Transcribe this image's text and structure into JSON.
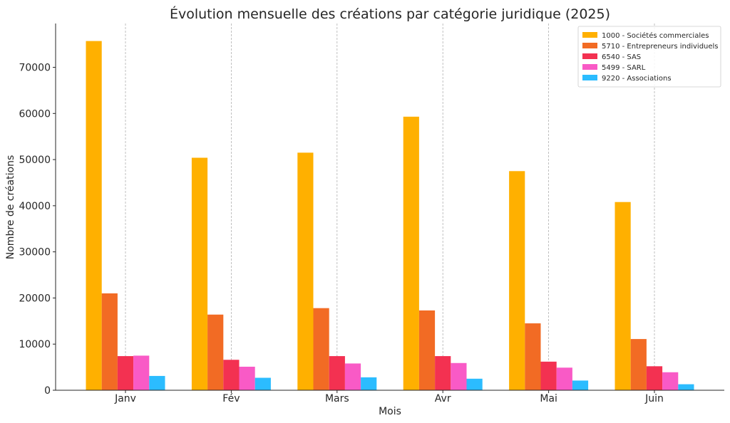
{
  "chart_data": {
    "type": "bar",
    "title": "Évolution mensuelle des créations par catégorie juridique (2025)",
    "xlabel": "Mois",
    "ylabel": "Nombre de créations",
    "categories": [
      "Janv",
      "Fév",
      "Mars",
      "Avr",
      "Mai",
      "Juin"
    ],
    "ylim": [
      0,
      79500
    ],
    "yticks": [
      0,
      10000,
      20000,
      30000,
      40000,
      50000,
      60000,
      70000
    ],
    "grid": "vertical-dashed",
    "legend_position": "top-right",
    "series": [
      {
        "name": "1000 - Sociétés commerciales",
        "color": "#ffb000",
        "values": [
          75700,
          50400,
          51500,
          59300,
          47500,
          40800
        ]
      },
      {
        "name": "5710 - Entrepreneurs individuels",
        "color": "#f26b24",
        "values": [
          21000,
          16400,
          17800,
          17300,
          14500,
          11100
        ]
      },
      {
        "name": "6540 - SAS",
        "color": "#f33151",
        "values": [
          7400,
          6600,
          7400,
          7400,
          6200,
          5200
        ]
      },
      {
        "name": "5499 - SARL",
        "color": "#f95ac6",
        "values": [
          7500,
          5100,
          5800,
          5900,
          4900,
          3900
        ]
      },
      {
        "name": "9220 - Associations",
        "color": "#2bbcff",
        "values": [
          3100,
          2700,
          2800,
          2500,
          2100,
          1300
        ]
      }
    ]
  }
}
